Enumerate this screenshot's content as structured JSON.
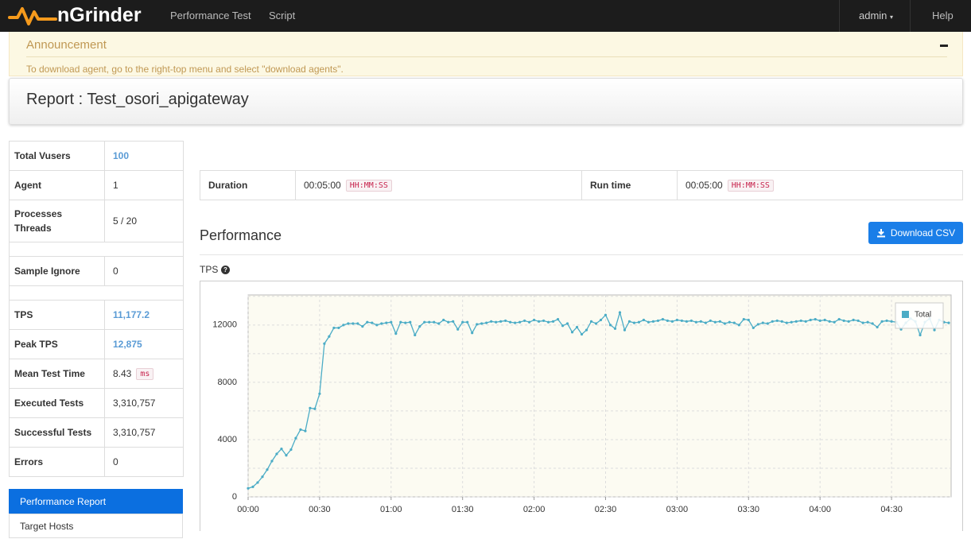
{
  "navbar": {
    "brand": "nGrinder",
    "links": [
      "Performance Test",
      "Script"
    ],
    "user": "admin",
    "help": "Help"
  },
  "announcement": {
    "title": "Announcement",
    "text": "To download agent, go to the right-top menu and select \"download agents\"."
  },
  "report": {
    "title": "Report : Test_osori_apigateway"
  },
  "summary": {
    "rows": [
      {
        "label": [
          "Total Vusers"
        ],
        "value": "100",
        "highlight": true
      },
      {
        "label": [
          "Agent"
        ],
        "value": "1"
      },
      {
        "label": [
          "Processes",
          "Threads"
        ],
        "value": "5 / 20"
      },
      {
        "label": [
          "Sample Ignore"
        ],
        "value": "0"
      },
      {
        "label": [
          "TPS"
        ],
        "value": "11,177.2",
        "highlight": true
      },
      {
        "label": [
          "Peak TPS"
        ],
        "value": "12,875",
        "highlight": true
      },
      {
        "label": [
          "Mean Test Time"
        ],
        "value": "8.43",
        "unit": "ms"
      },
      {
        "label": [
          "Executed Tests"
        ],
        "value": "3,310,757"
      },
      {
        "label": [
          "Successful Tests"
        ],
        "value": "3,310,757"
      },
      {
        "label": [
          "Errors"
        ],
        "value": "0"
      }
    ]
  },
  "menu": [
    "Performance Report",
    "Target Hosts"
  ],
  "duration": {
    "label": "Duration",
    "value": "00:05:00",
    "format": "HH:MM:SS"
  },
  "run_time": {
    "label": "Run time",
    "value": "00:05:00",
    "format": "HH:MM:SS"
  },
  "performance": {
    "heading": "Performance",
    "download": "Download CSV"
  },
  "chart_data": {
    "type": "line",
    "title": "TPS",
    "x": [
      0,
      2,
      4,
      6,
      8,
      10,
      12,
      14,
      16,
      18,
      20,
      22,
      24,
      26,
      28,
      30,
      32,
      34,
      36,
      38,
      40,
      42,
      44,
      46,
      48,
      50,
      52,
      54,
      56,
      58,
      60,
      62,
      64,
      66,
      68,
      70,
      72,
      74,
      76,
      78,
      80,
      82,
      84,
      86,
      88,
      90,
      92,
      94,
      96,
      98,
      100,
      102,
      104,
      106,
      108,
      110,
      112,
      114,
      116,
      118,
      120,
      122,
      124,
      126,
      128,
      130,
      132,
      134,
      136,
      138,
      140,
      142,
      144,
      146,
      148,
      150,
      152,
      154,
      156,
      158,
      160,
      162,
      164,
      166,
      168,
      170,
      172,
      174,
      176,
      178,
      180,
      182,
      184,
      186,
      188,
      190,
      192,
      194,
      196,
      198,
      200,
      202,
      204,
      206,
      208,
      210,
      212,
      214,
      216,
      218,
      220,
      222,
      224,
      226,
      228,
      230,
      232,
      234,
      236,
      238,
      240,
      242,
      244,
      246,
      248,
      250,
      252,
      254,
      256,
      258,
      260,
      262,
      264,
      266,
      268,
      270,
      272,
      274,
      276,
      278,
      280,
      282,
      284,
      286,
      288,
      290,
      292,
      294
    ],
    "series": [
      {
        "name": "Total",
        "color": "#4bacc6",
        "values": [
          600,
          700,
          1000,
          1400,
          1900,
          2500,
          3000,
          3350,
          2900,
          3300,
          4100,
          4700,
          4600,
          6200,
          6150,
          7200,
          10700,
          11200,
          11800,
          11800,
          12000,
          12100,
          12100,
          12100,
          11900,
          12200,
          12150,
          12000,
          12100,
          12150,
          12200,
          11400,
          12200,
          12150,
          12200,
          11300,
          11900,
          12200,
          12200,
          12200,
          12100,
          12350,
          12200,
          12250,
          11700,
          12200,
          12200,
          11450,
          12050,
          12100,
          12150,
          12250,
          12200,
          12250,
          12300,
          12200,
          12150,
          12200,
          12300,
          12200,
          12350,
          12250,
          12300,
          12200,
          12250,
          12400,
          11950,
          12100,
          11500,
          11850,
          11350,
          11650,
          12250,
          12100,
          12350,
          12700,
          12000,
          11750,
          12875,
          11650,
          12250,
          12150,
          12200,
          12350,
          12200,
          12250,
          12300,
          12400,
          12300,
          12250,
          12350,
          12300,
          12250,
          12300,
          12200,
          12250,
          12150,
          12300,
          12200,
          12250,
          12100,
          12200,
          12150,
          12000,
          12400,
          12350,
          11800,
          12050,
          12150,
          12100,
          12250,
          12300,
          12250,
          12150,
          12200,
          12250,
          12300,
          12250,
          12350,
          12400,
          12300,
          12350,
          12250,
          12200,
          12400,
          12300,
          12250,
          12350,
          12300,
          12150,
          12200,
          12100,
          11850,
          12250,
          12300,
          12250,
          12200,
          11700,
          12150,
          12450,
          12250,
          11300,
          12200,
          12450,
          11650,
          12350,
          12200,
          12150
        ]
      }
    ],
    "xlim": [
      0,
      295
    ],
    "xticks": [
      {
        "value": 0,
        "label": "00:00"
      },
      {
        "value": 30,
        "label": "00:30"
      },
      {
        "value": 60,
        "label": "01:00"
      },
      {
        "value": 90,
        "label": "01:30"
      },
      {
        "value": 120,
        "label": "02:00"
      },
      {
        "value": 150,
        "label": "02:30"
      },
      {
        "value": 180,
        "label": "03:00"
      },
      {
        "value": 210,
        "label": "03:30"
      },
      {
        "value": 240,
        "label": "04:00"
      },
      {
        "value": 270,
        "label": "04:30"
      }
    ],
    "ylim": [
      0,
      14100
    ],
    "yticks": [
      0,
      4000,
      8000,
      12000
    ],
    "y_minor_grid": [
      2000,
      6000,
      10000,
      14000
    ],
    "grid": true,
    "legend": "upper right"
  }
}
